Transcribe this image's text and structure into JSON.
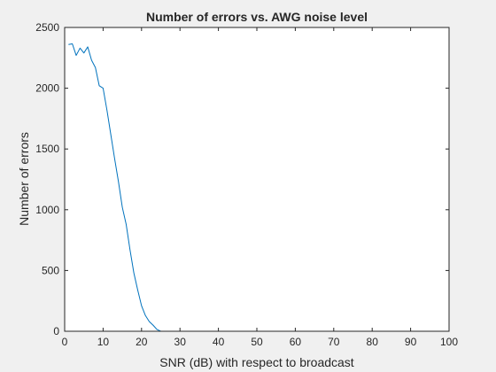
{
  "chart_data": {
    "type": "line",
    "title": "Number of errors vs. AWG noise level",
    "xlabel": "SNR (dB) with respect to broadcast",
    "ylabel": "Number of errors",
    "xlim": [
      0,
      100
    ],
    "ylim": [
      0,
      2500
    ],
    "xticks": [
      0,
      10,
      20,
      30,
      40,
      50,
      60,
      70,
      80,
      90,
      100
    ],
    "yticks": [
      0,
      500,
      1000,
      1500,
      2000,
      2500
    ],
    "grid": false,
    "legend": "none",
    "line_color": "#0072bd",
    "series": [
      {
        "x": [
          1,
          2,
          3,
          4,
          5,
          6,
          7,
          8,
          9,
          10,
          11,
          12,
          13,
          14,
          15,
          16,
          17,
          18,
          19,
          20,
          21,
          22,
          23,
          24,
          25,
          26,
          27,
          28,
          29,
          30,
          31,
          32,
          33,
          34,
          35,
          36,
          37,
          38,
          39,
          40,
          41,
          42,
          43,
          44,
          45,
          46,
          47,
          48,
          49,
          50,
          51,
          52,
          53,
          54,
          55,
          56,
          57,
          58,
          59,
          60,
          61,
          62,
          63,
          64,
          65,
          66,
          67,
          68,
          69,
          70,
          71,
          72,
          73,
          74,
          75,
          76,
          77,
          78,
          79,
          80,
          81,
          82,
          83,
          84,
          85,
          86,
          87,
          88,
          89,
          90,
          91,
          92,
          93,
          94,
          95,
          96,
          97,
          98,
          99,
          100
        ],
        "values": [
          2360,
          2365,
          2270,
          2330,
          2290,
          2340,
          2230,
          2170,
          2020,
          2000,
          1820,
          1620,
          1420,
          1230,
          1020,
          880,
          670,
          480,
          340,
          210,
          130,
          80,
          50,
          15,
          0,
          0,
          0,
          0,
          0,
          0,
          0,
          0,
          0,
          0,
          0,
          0,
          0,
          0,
          0,
          0,
          0,
          0,
          0,
          0,
          0,
          0,
          0,
          0,
          0,
          0,
          0,
          0,
          0,
          0,
          0,
          0,
          0,
          0,
          0,
          0,
          0,
          0,
          0,
          0,
          0,
          0,
          0,
          0,
          0,
          0,
          0,
          0,
          0,
          0,
          0,
          0,
          0,
          0,
          0,
          0,
          0,
          0,
          0,
          0,
          0,
          0,
          0,
          0,
          0,
          0,
          0,
          0,
          0,
          0,
          0,
          0,
          0,
          0,
          0,
          0
        ]
      }
    ]
  }
}
